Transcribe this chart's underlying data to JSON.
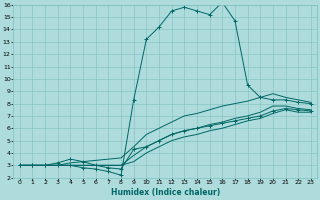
{
  "xlabel": "Humidex (Indice chaleur)",
  "bg_color": "#aedcdc",
  "grid_color": "#80c0c0",
  "line_color": "#006666",
  "xlim": [
    -0.5,
    23.5
  ],
  "ylim": [
    2,
    16
  ],
  "xticks": [
    0,
    1,
    2,
    3,
    4,
    5,
    6,
    7,
    8,
    9,
    10,
    11,
    12,
    13,
    14,
    15,
    16,
    17,
    18,
    19,
    20,
    21,
    22,
    23
  ],
  "yticks": [
    2,
    3,
    4,
    5,
    6,
    7,
    8,
    9,
    10,
    11,
    12,
    13,
    14,
    15,
    16
  ],
  "lines": [
    {
      "x": [
        0,
        1,
        2,
        3,
        4,
        5,
        6,
        7,
        8,
        9,
        10,
        11,
        12,
        13,
        14,
        15,
        16,
        17,
        18,
        19,
        20,
        21,
        22,
        23
      ],
      "y": [
        3,
        3,
        3,
        3,
        3,
        2.8,
        2.7,
        2.5,
        2.2,
        8.3,
        13.2,
        14.2,
        15.5,
        15.8,
        15.5,
        15.2,
        16.2,
        14.7,
        9.5,
        8.5,
        8.3,
        8.3,
        8.1,
        8.0
      ],
      "marker": true
    },
    {
      "x": [
        0,
        1,
        2,
        3,
        4,
        5,
        6,
        7,
        8,
        9,
        10,
        11,
        12,
        13,
        14,
        15,
        16,
        17,
        18,
        19,
        20,
        21,
        22,
        23
      ],
      "y": [
        3,
        3,
        3,
        3,
        3.2,
        3.3,
        3.4,
        3.5,
        3.6,
        4.5,
        5.5,
        6.0,
        6.5,
        7.0,
        7.2,
        7.5,
        7.8,
        8.0,
        8.2,
        8.5,
        8.8,
        8.5,
        8.3,
        8.1
      ],
      "marker": false
    },
    {
      "x": [
        0,
        1,
        2,
        3,
        4,
        5,
        6,
        7,
        8,
        9,
        10,
        11,
        12,
        13,
        14,
        15,
        16,
        17,
        18,
        19,
        20,
        21,
        22,
        23
      ],
      "y": [
        3,
        3,
        3,
        3,
        3,
        3,
        3,
        3,
        3,
        3.8,
        4.5,
        5.0,
        5.5,
        5.8,
        6.0,
        6.3,
        6.5,
        6.8,
        7.0,
        7.3,
        7.8,
        7.8,
        7.6,
        7.5
      ],
      "marker": false
    },
    {
      "x": [
        0,
        1,
        2,
        3,
        4,
        5,
        6,
        7,
        8,
        9,
        10,
        11,
        12,
        13,
        14,
        15,
        16,
        17,
        18,
        19,
        20,
        21,
        22,
        23
      ],
      "y": [
        3,
        3,
        3,
        3.2,
        3.5,
        3.3,
        3.0,
        2.8,
        2.7,
        4.3,
        4.5,
        5.0,
        5.5,
        5.8,
        6.0,
        6.2,
        6.4,
        6.6,
        6.8,
        7.0,
        7.4,
        7.6,
        7.5,
        7.4
      ],
      "marker": true
    },
    {
      "x": [
        0,
        1,
        2,
        3,
        4,
        5,
        6,
        7,
        8,
        9,
        10,
        11,
        12,
        13,
        14,
        15,
        16,
        17,
        18,
        19,
        20,
        21,
        22,
        23
      ],
      "y": [
        3,
        3,
        3,
        3,
        3,
        3,
        3,
        3,
        3,
        3.3,
        4.0,
        4.5,
        5.0,
        5.3,
        5.5,
        5.8,
        6.0,
        6.3,
        6.6,
        6.8,
        7.2,
        7.5,
        7.3,
        7.3
      ],
      "marker": false
    }
  ]
}
